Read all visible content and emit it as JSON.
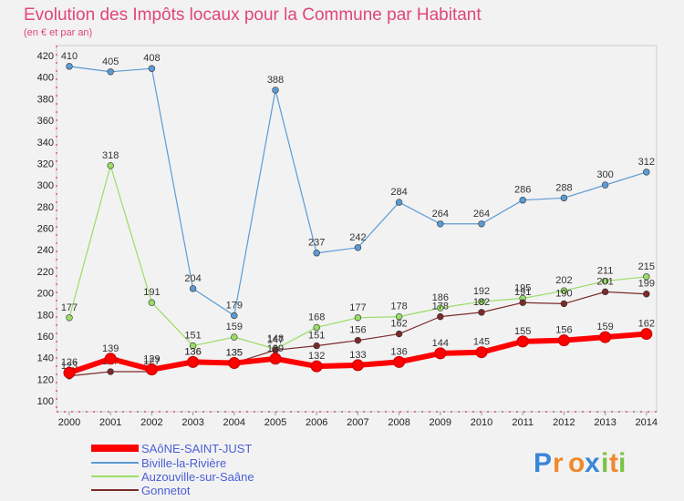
{
  "chart_data": {
    "type": "line",
    "title": "Evolution des Impôts locaux pour la Commune par Habitant",
    "subtitle": "(en € et par an)",
    "x": [
      "2000",
      "2001",
      "2002",
      "2003",
      "2004",
      "2005",
      "2006",
      "2007",
      "2008",
      "2009",
      "2010",
      "2011",
      "2012",
      "2013",
      "2014"
    ],
    "ylim": [
      100,
      420
    ],
    "yticks": [
      100,
      120,
      140,
      160,
      180,
      200,
      220,
      240,
      260,
      280,
      300,
      320,
      340,
      360,
      380,
      400,
      420
    ],
    "grid": false,
    "legend_position": "bottom-left",
    "series": [
      {
        "name": "SAôNE-SAINT-JUST",
        "color": "#ff0000",
        "values": [
          126,
          139,
          129,
          136,
          135,
          139,
          132,
          133,
          136,
          144,
          145,
          155,
          156,
          159,
          162
        ]
      },
      {
        "name": "Biville-la-Rivière",
        "color": "#5b9bd5",
        "values": [
          410,
          405,
          408,
          204,
          179,
          388,
          237,
          242,
          284,
          264,
          264,
          286,
          288,
          300,
          312
        ]
      },
      {
        "name": "Auzouville-sur-Saâne",
        "color": "#99dd66",
        "values": [
          177,
          318,
          191,
          151,
          159,
          148,
          168,
          177,
          178,
          186,
          192,
          195,
          202,
          211,
          215
        ]
      },
      {
        "name": "Gonnetot",
        "color": "#7b2a2a",
        "values": [
          123,
          127,
          127,
          136,
          135,
          147,
          151,
          156,
          162,
          178,
          182,
          191,
          190,
          201,
          199
        ]
      }
    ]
  },
  "logo": {
    "letters": [
      {
        "ch": "P",
        "color": "#3a86d8"
      },
      {
        "ch": "r",
        "color": "#f0892e"
      },
      {
        "ch": "o",
        "color": "#f0892e"
      },
      {
        "ch": "x",
        "color": "#3a86d8"
      },
      {
        "ch": "i",
        "color": "#7cc243"
      },
      {
        "ch": "t",
        "color": "#f0892e"
      },
      {
        "ch": "i",
        "color": "#7cc243"
      }
    ]
  }
}
